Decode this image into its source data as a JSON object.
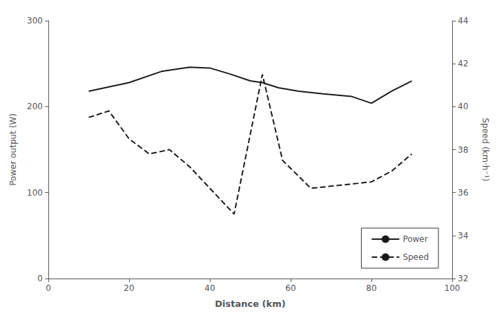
{
  "chart_data": {
    "type": "line",
    "xlabel": "Distance (km)",
    "ylabel": "Power output (W)",
    "y2label": "Speed (km·h⁻¹)",
    "xlim": [
      0,
      100
    ],
    "xticks": [
      0,
      20,
      40,
      60,
      80,
      100
    ],
    "ylim": [
      0,
      300
    ],
    "yticks": [
      0,
      100,
      200,
      300
    ],
    "y2lim": [
      32,
      44
    ],
    "y2ticks": [
      32,
      34,
      36,
      38,
      40,
      42,
      44
    ],
    "grid": false,
    "legend": "lower right",
    "series": [
      {
        "name": "Power",
        "color": "#1a1a1a",
        "line_style": "solid",
        "x": [
          10,
          20,
          28,
          35,
          40,
          45,
          50,
          53,
          57,
          62,
          68,
          75,
          80,
          85,
          90
        ],
        "values": [
          218,
          228,
          241,
          246,
          245,
          238,
          230,
          228,
          222,
          218,
          215,
          212,
          204,
          218,
          230
        ]
      },
      {
        "name": "Speed",
        "color": "#1a1a1a",
        "line_style": "dashed",
        "axis": "y2",
        "x": [
          10,
          15,
          20,
          25,
          30,
          35,
          40,
          46,
          53,
          58,
          65,
          70,
          75,
          80,
          85,
          90
        ],
        "values": [
          39.5,
          39.8,
          38.5,
          37.8,
          38.0,
          37.2,
          36.2,
          35.0,
          41.5,
          37.5,
          36.2,
          36.3,
          36.4,
          36.5,
          37.0,
          37.8
        ]
      }
    ]
  }
}
